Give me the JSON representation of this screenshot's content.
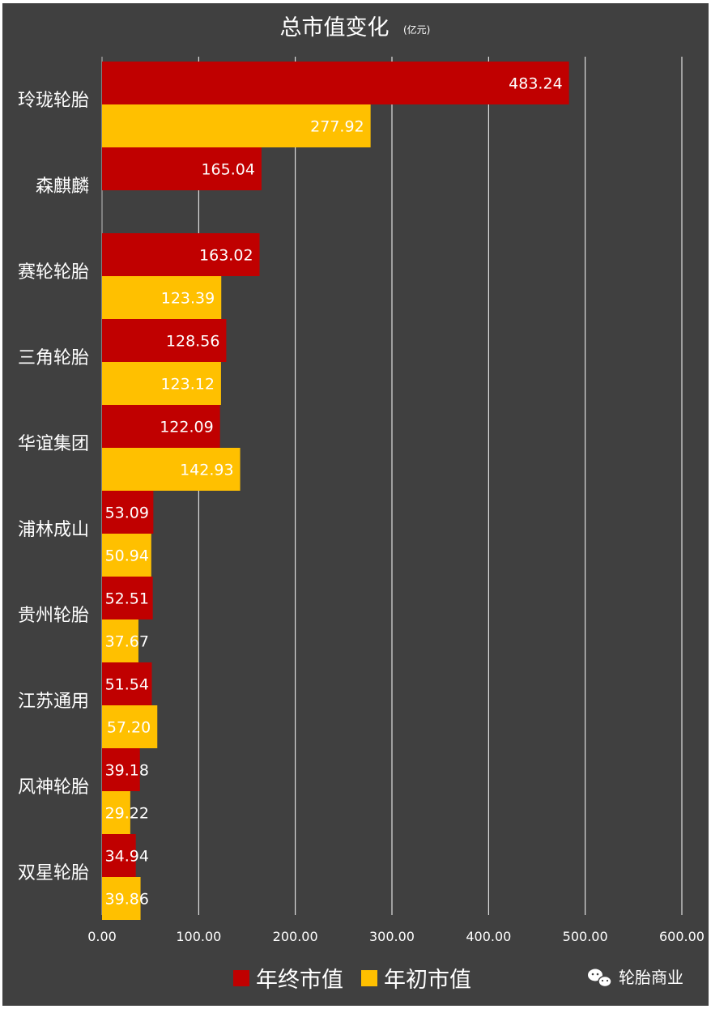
{
  "chart_data": {
    "type": "bar",
    "orientation": "horizontal",
    "title": "总市值变化",
    "unit_note": "(亿元)",
    "categories": [
      "玲珑轮胎",
      "森麒麟",
      "赛轮轮胎",
      "三角轮胎",
      "华谊集团",
      "浦林成山",
      "贵州轮胎",
      "江苏通用",
      "风神轮胎",
      "双星轮胎"
    ],
    "series": [
      {
        "name": "年终市值",
        "color": "#c00000",
        "values": [
          483.24,
          165.04,
          163.02,
          128.56,
          122.09,
          53.09,
          52.51,
          51.54,
          39.18,
          34.94
        ],
        "labels": [
          "483.24",
          "165.04",
          "163.02",
          "128.56",
          "122.09",
          "53.09",
          "52.51",
          "51.54",
          "39.18",
          "34.94"
        ]
      },
      {
        "name": "年初市值",
        "color": "#ffc000",
        "values": [
          277.92,
          null,
          123.39,
          123.12,
          142.93,
          50.94,
          37.67,
          57.2,
          29.22,
          39.86
        ],
        "labels": [
          "277.92",
          "",
          "123.39",
          "123.12",
          "142.93",
          "50.94",
          "37.67",
          "57.20",
          "29.22",
          "39.86"
        ]
      }
    ],
    "xlim": [
      0,
      600
    ],
    "xticks": [
      "0.00",
      "100.00",
      "200.00",
      "300.00",
      "400.00",
      "500.00",
      "600.00"
    ],
    "grid": true,
    "legend_position": "bottom"
  },
  "watermark": {
    "text": "轮胎商业",
    "icon": "wechat-icon"
  },
  "colors": {
    "background": "#404040",
    "text": "#ffffff",
    "grid": "#ffffff"
  }
}
